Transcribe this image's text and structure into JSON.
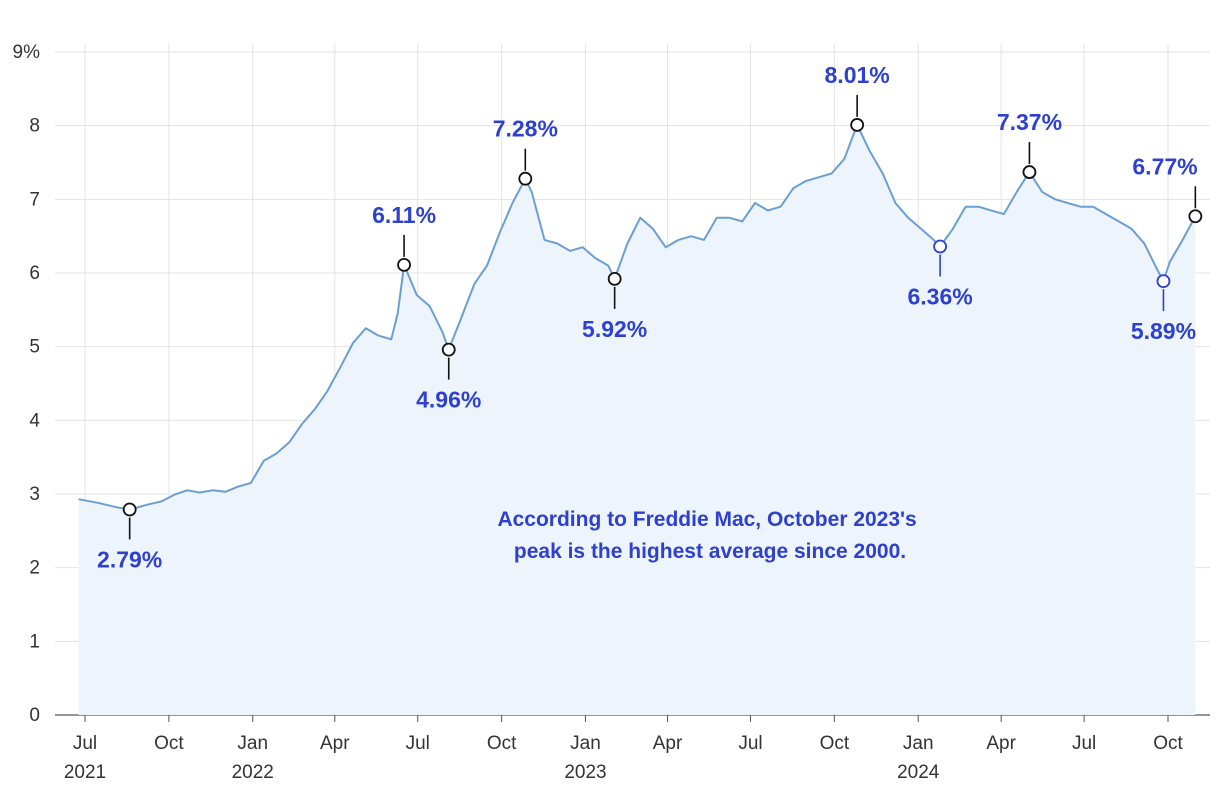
{
  "chart_data": {
    "type": "line",
    "title": "",
    "xlabel": "",
    "ylabel": "",
    "ylim": [
      0,
      9
    ],
    "xlim": [
      "2021-06-24",
      "2024-10-31"
    ],
    "grid": true,
    "colors": {
      "line": "#6a9fd3",
      "area": "#eef4fc",
      "callout_text": "#2d40d0",
      "marker_peak": "#111111",
      "marker_low": "#2d40d0",
      "grid": "#e3e3e3"
    },
    "y_ticks": [
      {
        "value": 0,
        "label": "0"
      },
      {
        "value": 1,
        "label": "1"
      },
      {
        "value": 2,
        "label": "2"
      },
      {
        "value": 3,
        "label": "3"
      },
      {
        "value": 4,
        "label": "4"
      },
      {
        "value": 5,
        "label": "5"
      },
      {
        "value": 6,
        "label": "6"
      },
      {
        "value": 7,
        "label": "7"
      },
      {
        "value": 8,
        "label": "8"
      },
      {
        "value": 9,
        "label": "9%"
      }
    ],
    "x_ticks": [
      {
        "date": "2021-07-01",
        "label": "Jul",
        "year": "2021"
      },
      {
        "date": "2021-10-01",
        "label": "Oct",
        "year": ""
      },
      {
        "date": "2022-01-01",
        "label": "Jan",
        "year": "2022"
      },
      {
        "date": "2022-04-01",
        "label": "Apr",
        "year": ""
      },
      {
        "date": "2022-07-01",
        "label": "Jul",
        "year": ""
      },
      {
        "date": "2022-10-01",
        "label": "Oct",
        "year": ""
      },
      {
        "date": "2023-01-01",
        "label": "Jan",
        "year": "2023"
      },
      {
        "date": "2023-04-01",
        "label": "Apr",
        "year": ""
      },
      {
        "date": "2023-07-01",
        "label": "Jul",
        "year": ""
      },
      {
        "date": "2023-10-01",
        "label": "Oct",
        "year": ""
      },
      {
        "date": "2024-01-01",
        "label": "Jan",
        "year": "2024"
      },
      {
        "date": "2024-04-01",
        "label": "Apr",
        "year": ""
      },
      {
        "date": "2024-07-01",
        "label": "Jul",
        "year": ""
      },
      {
        "date": "2024-10-01",
        "label": "Oct",
        "year": ""
      }
    ],
    "series": [
      {
        "x": [
          "2021-06-24",
          "2021-07-15",
          "2021-08-05",
          "2021-08-19",
          "2021-09-09",
          "2021-09-23",
          "2021-10-07",
          "2021-10-21",
          "2021-11-04",
          "2021-11-18",
          "2021-12-02",
          "2021-12-16",
          "2021-12-30",
          "2022-01-13",
          "2022-01-27",
          "2022-02-10",
          "2022-02-24",
          "2022-03-10",
          "2022-03-24",
          "2022-04-07",
          "2022-04-21",
          "2022-05-05",
          "2022-05-19",
          "2022-06-02",
          "2022-06-09",
          "2022-06-16",
          "2022-06-30",
          "2022-07-14",
          "2022-07-28",
          "2022-08-04",
          "2022-08-18",
          "2022-09-01",
          "2022-09-15",
          "2022-09-29",
          "2022-10-13",
          "2022-10-27",
          "2022-11-03",
          "2022-11-17",
          "2022-12-01",
          "2022-12-15",
          "2022-12-29",
          "2023-01-12",
          "2023-01-26",
          "2023-02-02",
          "2023-02-16",
          "2023-03-02",
          "2023-03-16",
          "2023-03-30",
          "2023-04-13",
          "2023-04-27",
          "2023-05-11",
          "2023-05-25",
          "2023-06-08",
          "2023-06-22",
          "2023-07-06",
          "2023-07-20",
          "2023-08-03",
          "2023-08-17",
          "2023-08-31",
          "2023-09-14",
          "2023-09-28",
          "2023-10-12",
          "2023-10-26",
          "2023-11-09",
          "2023-11-23",
          "2023-12-07",
          "2023-12-21",
          "2024-01-04",
          "2024-01-18",
          "2024-01-25",
          "2024-02-08",
          "2024-02-22",
          "2024-03-07",
          "2024-03-21",
          "2024-04-04",
          "2024-04-18",
          "2024-05-02",
          "2024-05-16",
          "2024-05-30",
          "2024-06-13",
          "2024-06-27",
          "2024-07-11",
          "2024-07-25",
          "2024-08-08",
          "2024-08-22",
          "2024-09-05",
          "2024-09-19",
          "2024-09-26",
          "2024-10-03",
          "2024-10-17",
          "2024-10-31"
        ],
        "y": [
          2.93,
          2.88,
          2.82,
          2.79,
          2.86,
          2.9,
          2.99,
          3.05,
          3.02,
          3.05,
          3.03,
          3.1,
          3.15,
          3.45,
          3.55,
          3.7,
          3.95,
          4.15,
          4.4,
          4.72,
          5.05,
          5.25,
          5.15,
          5.1,
          5.45,
          6.11,
          5.7,
          5.55,
          5.2,
          4.96,
          5.4,
          5.85,
          6.1,
          6.55,
          6.95,
          7.28,
          7.1,
          6.45,
          6.4,
          6.3,
          6.35,
          6.2,
          6.1,
          5.92,
          6.4,
          6.75,
          6.6,
          6.35,
          6.45,
          6.5,
          6.45,
          6.75,
          6.75,
          6.7,
          6.95,
          6.85,
          6.9,
          7.15,
          7.25,
          7.3,
          7.35,
          7.55,
          8.01,
          7.65,
          7.35,
          6.95,
          6.75,
          6.6,
          6.45,
          6.36,
          6.6,
          6.9,
          6.9,
          6.85,
          6.8,
          7.1,
          7.37,
          7.1,
          7.0,
          6.95,
          6.9,
          6.9,
          6.8,
          6.7,
          6.6,
          6.4,
          6.05,
          5.89,
          6.15,
          6.45,
          6.77
        ]
      }
    ],
    "callouts": [
      {
        "label": "2.79%",
        "date": "2021-08-19",
        "value": 2.79,
        "kind": "low"
      },
      {
        "label": "6.11%",
        "date": "2022-06-16",
        "value": 6.11,
        "kind": "peak"
      },
      {
        "label": "4.96%",
        "date": "2022-08-04",
        "value": 4.96,
        "kind": "low"
      },
      {
        "label": "7.28%",
        "date": "2022-10-27",
        "value": 7.28,
        "kind": "peak"
      },
      {
        "label": "5.92%",
        "date": "2023-02-02",
        "value": 5.92,
        "kind": "low"
      },
      {
        "label": "8.01%",
        "date": "2023-10-26",
        "value": 8.01,
        "kind": "peak"
      },
      {
        "label": "6.36%",
        "date": "2024-01-25",
        "value": 6.36,
        "kind": "low"
      },
      {
        "label": "7.37%",
        "date": "2024-05-02",
        "value": 7.37,
        "kind": "peak"
      },
      {
        "label": "5.89%",
        "date": "2024-09-26",
        "value": 5.89,
        "kind": "low"
      },
      {
        "label": "6.77%",
        "date": "2024-10-31",
        "value": 6.77,
        "kind": "peak"
      }
    ],
    "annotation": {
      "lines": [
        "According to Freddie Mac, October 2023's",
        "peak is the highest average since 2000."
      ]
    }
  }
}
